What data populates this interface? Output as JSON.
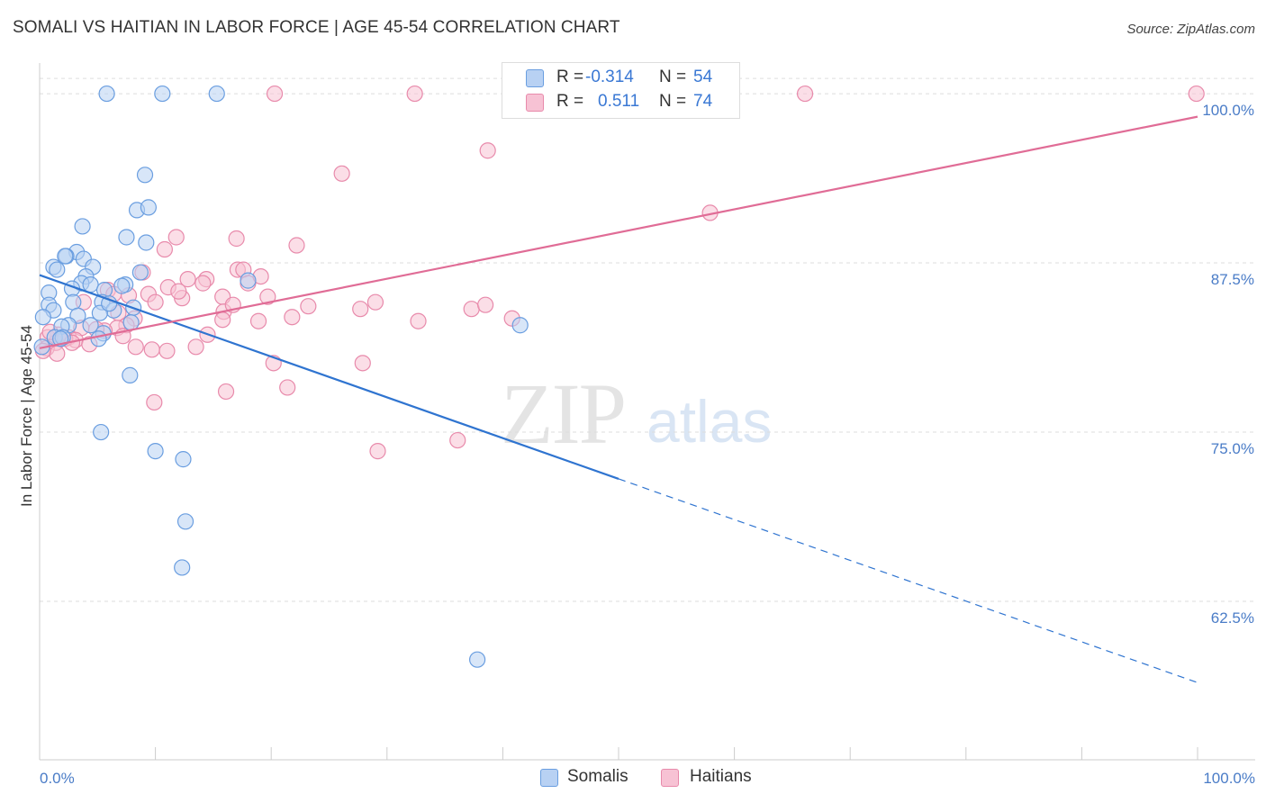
{
  "header": {
    "title": "SOMALI VS HAITIAN IN LABOR FORCE | AGE 45-54 CORRELATION CHART",
    "source": "Source: ZipAtlas.com"
  },
  "watermark": {
    "zip": "ZIP",
    "atlas": "atlas"
  },
  "legend": {
    "rows": [
      {
        "r_label": "R =",
        "r_value": "-0.314",
        "n_label": "N =",
        "n_value": "54"
      },
      {
        "r_label": "R =",
        "r_value": "0.511",
        "n_label": "N =",
        "n_value": "74"
      }
    ]
  },
  "bottom_legend": {
    "items": [
      {
        "label": "Somalis"
      },
      {
        "label": "Haitians"
      }
    ]
  },
  "colors": {
    "somali_fill": "#b8d1f3",
    "somali_stroke": "#6a9ee0",
    "somali_line": "#2f74d0",
    "haitian_fill": "#f7c2d4",
    "haitian_stroke": "#e88aab",
    "haitian_line": "#e06c96",
    "axis_text": "#4a7cc7",
    "grid": "#dddddd"
  },
  "chart_data": {
    "type": "scatter",
    "title": "SOMALI VS HAITIAN IN LABOR FORCE | AGE 45-54 CORRELATION CHART",
    "xlabel": "",
    "ylabel": "In Labor Force | Age 45-54",
    "xlim": [
      0,
      100
    ],
    "ylim": [
      50.8,
      101.6
    ],
    "x_tick_labels": [
      "0.0%",
      "100.0%"
    ],
    "y_ticks": [
      62.5,
      75.0,
      87.5,
      100.0
    ],
    "y_tick_labels": [
      "62.5%",
      "75.0%",
      "87.5%",
      "100.0%"
    ],
    "grid": true,
    "series": [
      {
        "name": "Somalis",
        "r": -0.314,
        "n": 54,
        "trend": {
          "x0": 0,
          "y0": 86.6,
          "x1": 100,
          "y1": 56.5,
          "solid_until_x": 50
        },
        "points": [
          [
            5.8,
            100.0
          ],
          [
            10.6,
            100.0
          ],
          [
            15.3,
            100.0
          ],
          [
            9.1,
            94.0
          ],
          [
            8.4,
            91.4
          ],
          [
            9.4,
            91.6
          ],
          [
            3.7,
            90.2
          ],
          [
            7.5,
            89.4
          ],
          [
            9.2,
            89.0
          ],
          [
            3.2,
            88.3
          ],
          [
            2.3,
            88.0
          ],
          [
            2.2,
            88.0
          ],
          [
            3.8,
            87.8
          ],
          [
            1.2,
            87.2
          ],
          [
            4.6,
            87.2
          ],
          [
            1.5,
            87.0
          ],
          [
            8.7,
            86.8
          ],
          [
            4.0,
            86.5
          ],
          [
            18.0,
            86.2
          ],
          [
            3.6,
            86.0
          ],
          [
            4.4,
            85.9
          ],
          [
            7.4,
            85.9
          ],
          [
            7.1,
            85.8
          ],
          [
            2.8,
            85.6
          ],
          [
            0.8,
            85.3
          ],
          [
            5.6,
            85.5
          ],
          [
            2.9,
            84.6
          ],
          [
            5.4,
            84.6
          ],
          [
            0.8,
            84.4
          ],
          [
            8.1,
            84.2
          ],
          [
            6.4,
            84.0
          ],
          [
            1.2,
            84.0
          ],
          [
            3.3,
            83.6
          ],
          [
            0.3,
            83.5
          ],
          [
            7.9,
            83.1
          ],
          [
            2.5,
            82.9
          ],
          [
            4.4,
            82.9
          ],
          [
            41.5,
            82.9
          ],
          [
            1.9,
            82.8
          ],
          [
            5.5,
            82.3
          ],
          [
            1.3,
            82.0
          ],
          [
            2.0,
            82.0
          ],
          [
            1.8,
            81.9
          ],
          [
            5.1,
            81.9
          ],
          [
            0.2,
            81.3
          ],
          [
            7.8,
            79.2
          ],
          [
            5.3,
            75.0
          ],
          [
            10.0,
            73.6
          ],
          [
            12.4,
            73.0
          ],
          [
            12.6,
            68.4
          ],
          [
            12.3,
            65.0
          ],
          [
            37.8,
            58.2
          ],
          [
            5.2,
            83.8
          ],
          [
            6.0,
            84.5
          ]
        ]
      },
      {
        "name": "Haitians",
        "r": 0.511,
        "n": 74,
        "trend": {
          "x0": 0,
          "y0": 81.2,
          "x1": 100,
          "y1": 98.3
        },
        "points": [
          [
            20.3,
            100.0
          ],
          [
            32.4,
            100.0
          ],
          [
            66.1,
            100.0
          ],
          [
            99.9,
            100.0
          ],
          [
            38.7,
            95.8
          ],
          [
            26.1,
            94.1
          ],
          [
            57.9,
            91.2
          ],
          [
            11.8,
            89.4
          ],
          [
            17.0,
            89.3
          ],
          [
            22.2,
            88.8
          ],
          [
            10.8,
            88.5
          ],
          [
            17.1,
            87.0
          ],
          [
            17.6,
            87.0
          ],
          [
            8.9,
            86.8
          ],
          [
            14.4,
            86.3
          ],
          [
            12.8,
            86.3
          ],
          [
            14.1,
            86.0
          ],
          [
            18.0,
            86.0
          ],
          [
            11.1,
            85.7
          ],
          [
            5.9,
            85.5
          ],
          [
            6.4,
            85.2
          ],
          [
            9.4,
            85.2
          ],
          [
            7.7,
            85.1
          ],
          [
            15.8,
            85.0
          ],
          [
            19.7,
            85.0
          ],
          [
            12.3,
            84.9
          ],
          [
            3.8,
            84.6
          ],
          [
            29.0,
            84.6
          ],
          [
            23.2,
            84.3
          ],
          [
            27.7,
            84.1
          ],
          [
            37.3,
            84.1
          ],
          [
            38.5,
            84.4
          ],
          [
            15.9,
            83.9
          ],
          [
            21.8,
            83.5
          ],
          [
            8.2,
            83.4
          ],
          [
            15.8,
            83.3
          ],
          [
            18.9,
            83.2
          ],
          [
            32.7,
            83.2
          ],
          [
            40.8,
            83.4
          ],
          [
            7.5,
            82.9
          ],
          [
            3.6,
            82.7
          ],
          [
            6.7,
            82.7
          ],
          [
            5.6,
            82.5
          ],
          [
            1.6,
            82.2
          ],
          [
            14.5,
            82.2
          ],
          [
            2.5,
            82.0
          ],
          [
            0.7,
            82.0
          ],
          [
            3.1,
            81.8
          ],
          [
            1.4,
            81.6
          ],
          [
            4.3,
            81.5
          ],
          [
            8.3,
            81.3
          ],
          [
            0.6,
            81.2
          ],
          [
            9.7,
            81.1
          ],
          [
            11.0,
            81.0
          ],
          [
            1.5,
            80.8
          ],
          [
            20.2,
            80.1
          ],
          [
            27.9,
            80.1
          ],
          [
            13.5,
            81.3
          ],
          [
            21.4,
            78.3
          ],
          [
            16.1,
            78.0
          ],
          [
            9.9,
            77.2
          ],
          [
            36.1,
            74.4
          ],
          [
            29.2,
            73.6
          ],
          [
            0.3,
            81.0
          ],
          [
            2.2,
            81.9
          ],
          [
            4.9,
            82.6
          ],
          [
            6.8,
            83.8
          ],
          [
            10.0,
            84.6
          ],
          [
            12.0,
            85.4
          ],
          [
            16.7,
            84.4
          ],
          [
            19.1,
            86.5
          ],
          [
            0.9,
            82.4
          ],
          [
            2.8,
            81.6
          ],
          [
            7.2,
            82.1
          ]
        ]
      }
    ]
  }
}
